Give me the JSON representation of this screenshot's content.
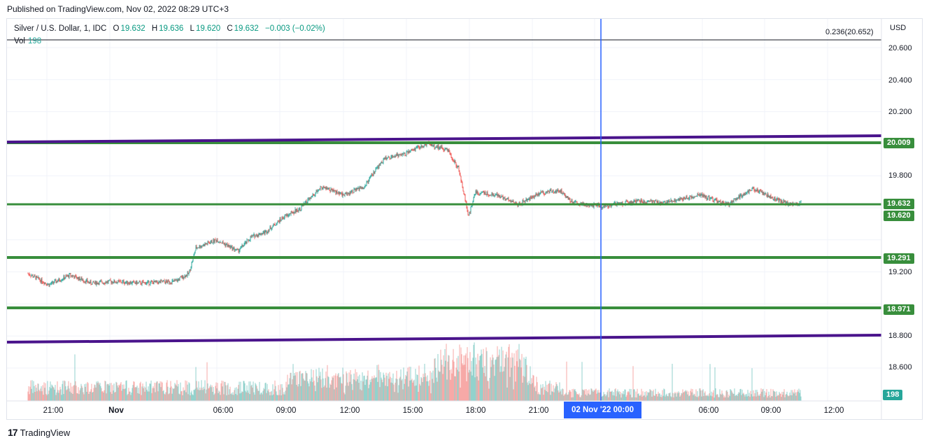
{
  "header": {
    "published_text": "Published on TradingView.com, Nov 02, 2022 08:29 UTC+3"
  },
  "legend": {
    "symbol": "Silver / U.S. Dollar, 1, IDC",
    "o_label": "O",
    "o_value": "19.632",
    "h_label": "H",
    "h_value": "19.636",
    "l_label": "L",
    "l_value": "19.620",
    "c_label": "C",
    "c_value": "19.632",
    "change": "−0.003 (−0.02%)",
    "vol_label": "Vol",
    "vol_value": "198"
  },
  "fib_label": "0.236(20.652)",
  "price_axis": {
    "currency": "USD",
    "ticks": [
      "20.600",
      "20.400",
      "20.200",
      "19.800",
      "19.200",
      "18.800",
      "18.600"
    ]
  },
  "badges": {
    "level_20009": "20.009",
    "level_19632": "19.632",
    "level_19620": "19.620",
    "level_19291": "19.291",
    "level_18971": "18.971",
    "volume": "198"
  },
  "time_axis": {
    "ticks": [
      "21:00",
      "Nov",
      "06:00",
      "09:00",
      "12:00",
      "15:00",
      "18:00",
      "21:00",
      "06:00",
      "09:00",
      "12:00"
    ],
    "crosshair_label": "02 Nov '22   00:00"
  },
  "footer": {
    "brand": "TradingView",
    "logo": "17"
  },
  "colors": {
    "up": "#26a69a",
    "down": "#ef5350",
    "support_line": "#388e3c",
    "trend_line": "#4a148c",
    "crosshair": "#2962ff",
    "badge_green": "#388e3c",
    "volume_badge": "#26a69a"
  },
  "chart_data": {
    "type": "candlestick",
    "symbol": "Silver / U.S. Dollar",
    "interval": "1",
    "ylim": [
      18.6,
      20.7
    ],
    "horizontal_levels": [
      20.009,
      19.632,
      19.291,
      18.971,
      20.652
    ],
    "trend_lines": [
      {
        "from": [
          "Nov 01 18:40",
          20.01
        ],
        "to": [
          "Nov 02 08:40",
          20.05
        ]
      },
      {
        "from": [
          "Nov 01 18:40",
          18.77
        ],
        "to": [
          "Nov 02 08:40",
          18.81
        ]
      }
    ],
    "price_path": [
      [
        "Nov 01 19:40",
        19.19
      ],
      [
        "Nov 01 20:40",
        19.12
      ],
      [
        "Nov 01 21:40",
        19.18
      ],
      [
        "Nov 01 22:40",
        19.13
      ],
      [
        "Nov 01 23:40",
        19.14
      ],
      [
        "Nov 02 01:00",
        19.13
      ],
      [
        "Nov 02 02:40",
        19.14
      ],
      [
        "Nov 02 03:20",
        19.19
      ],
      [
        "Nov 02 03:40",
        19.35
      ],
      [
        "Nov 02 04:40",
        19.4
      ],
      [
        "Nov 02 05:40",
        19.33
      ],
      [
        "Nov 02 06:20",
        19.42
      ],
      [
        "Nov 02 07:00",
        19.45
      ],
      [
        "Nov 02 07:50",
        19.54
      ],
      [
        "Nov 02 08:40",
        19.6
      ],
      [
        "Nov 02 09:40",
        19.73
      ],
      [
        "Nov 02 10:40",
        19.68
      ],
      [
        "Nov 02 11:40",
        19.73
      ],
      [
        "Nov 02 12:40",
        19.91
      ],
      [
        "Nov 02 13:40",
        19.94
      ],
      [
        "Nov 02 14:40",
        20.0
      ],
      [
        "Nov 02 15:40",
        19.96
      ],
      [
        "Nov 02 16:10",
        19.85
      ],
      [
        "Nov 02 16:40",
        19.55
      ],
      [
        "Nov 02 17:00",
        19.7
      ],
      [
        "Nov 02 18:00",
        19.68
      ],
      [
        "Nov 02 19:00",
        19.62
      ],
      [
        "Nov 02 20:00",
        19.69
      ],
      [
        "Nov 02 21:00",
        19.71
      ],
      [
        "Nov 02 21:40",
        19.63
      ],
      [
        "Nov 02 23:00",
        19.61
      ],
      [
        "Nov 03 00:40",
        19.64
      ],
      [
        "Nov 03 02:00",
        19.63
      ],
      [
        "Nov 03 03:40",
        19.68
      ],
      [
        "Nov 03 05:00",
        19.62
      ],
      [
        "Nov 03 06:10",
        19.72
      ],
      [
        "Nov 03 07:00",
        19.67
      ],
      [
        "Nov 03 08:00",
        19.62
      ],
      [
        "Nov 03 08:30",
        19.632
      ]
    ]
  }
}
